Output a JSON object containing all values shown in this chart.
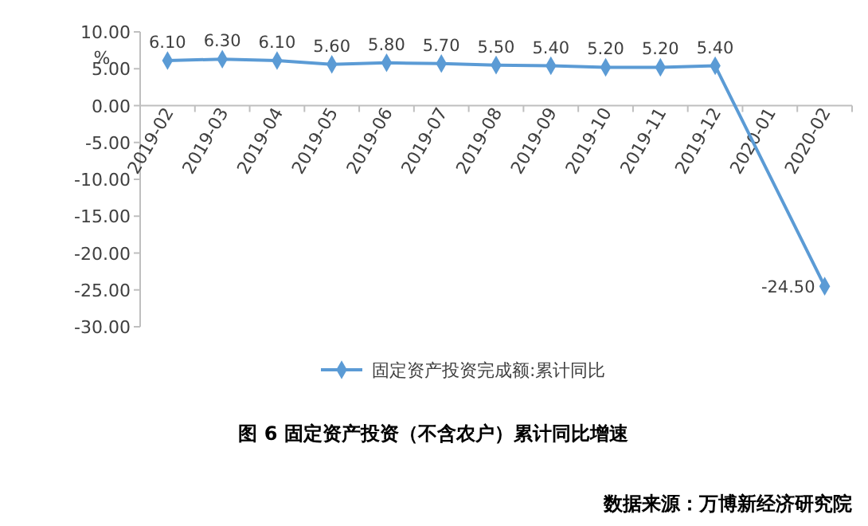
{
  "chart_data": {
    "type": "line",
    "ylabel": "%",
    "categories": [
      "2019-02",
      "2019-03",
      "2019-04",
      "2019-05",
      "2019-06",
      "2019-07",
      "2019-08",
      "2019-09",
      "2019-10",
      "2019-11",
      "2019-12",
      "2020-01",
      "2020-02"
    ],
    "series": [
      {
        "name": "固定资产投资完成额:累计同比",
        "color": "#5b9bd5",
        "values": [
          6.1,
          6.3,
          6.1,
          5.6,
          5.8,
          5.7,
          5.5,
          5.4,
          5.2,
          5.2,
          5.4,
          null,
          -24.5
        ],
        "value_labels": [
          "6.10",
          "6.30",
          "6.10",
          "5.60",
          "5.80",
          "5.70",
          "5.50",
          "5.40",
          "5.20",
          "5.20",
          "5.40",
          null,
          "-24.50"
        ]
      }
    ],
    "ylim": [
      -30,
      10
    ],
    "yticks": [
      {
        "value": 10,
        "label": "10.00"
      },
      {
        "value": 5,
        "label": "5.00"
      },
      {
        "value": 0,
        "label": "0.00"
      },
      {
        "value": -5,
        "label": "-5.00"
      },
      {
        "value": -10,
        "label": "-10.00"
      },
      {
        "value": -15,
        "label": "-15.00"
      },
      {
        "value": -20,
        "label": "-20.00"
      },
      {
        "value": -25,
        "label": "-25.00"
      },
      {
        "value": -30,
        "label": "-30.00"
      }
    ],
    "marker": "diamond",
    "legend": "bottom",
    "annotations": [
      "图 6 固定资产投资（不含农户）累计同比增速",
      "数据来源：万博新经济研究院"
    ]
  }
}
